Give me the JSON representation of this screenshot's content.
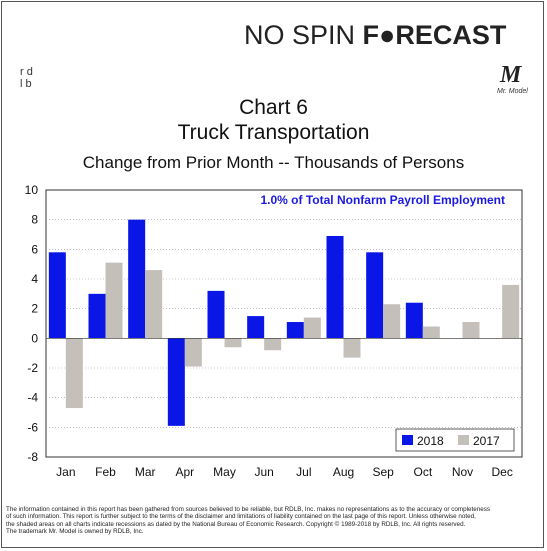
{
  "header": {
    "brand_prefix": "NO SPIN",
    "brand_main": "F●RECAST",
    "rdb_mark": "r d\nl b",
    "mr_model_mark": "M",
    "mr_model_text": "Mr. Model"
  },
  "chart_data": {
    "type": "bar",
    "title": "Chart 6",
    "subtitle": "Truck Transportation",
    "ylabel_caption": "Change from Prior Month -- Thousands of Persons",
    "annotation": "1.0% of Total Nonfarm Payroll Employment",
    "categories": [
      "Jan",
      "Feb",
      "Mar",
      "Apr",
      "May",
      "Jun",
      "Jul",
      "Aug",
      "Sep",
      "Oct",
      "Nov",
      "Dec"
    ],
    "series": [
      {
        "name": "2018",
        "color": "#0a16e6",
        "values": [
          5.8,
          3.0,
          8.0,
          -5.9,
          3.2,
          1.5,
          1.1,
          6.9,
          5.8,
          2.4,
          null,
          null
        ]
      },
      {
        "name": "2017",
        "color": "#c4bfb8",
        "values": [
          -4.7,
          5.1,
          4.6,
          -1.9,
          -0.6,
          -0.8,
          1.4,
          -1.3,
          2.3,
          0.8,
          1.1,
          3.6
        ]
      }
    ],
    "ylim": [
      -8,
      10
    ],
    "yticks": [
      -8,
      -6,
      -4,
      -2,
      0,
      2,
      4,
      6,
      8,
      10
    ],
    "grid": true,
    "legend_position": "bottom-right"
  },
  "footer": {
    "line1": "The information contained in this report has been gathered from sources believed to be reliable, but RDLB, Inc. makes no representations as to the accuracy or completeness",
    "line2": "of such information. This report is further subject to the terms of the disclaimer and limitations of liability contained on the last page of this report. Unless otherwise noted,",
    "line3": "the shaded areas on all charts indicate recessions as dated by the National Bureau of Economic Research. Copyright © 1989-2018 by RDLB, Inc. All rights reserved.",
    "line4": "The trademark Mr. Model is owned by RDLB, Inc."
  }
}
